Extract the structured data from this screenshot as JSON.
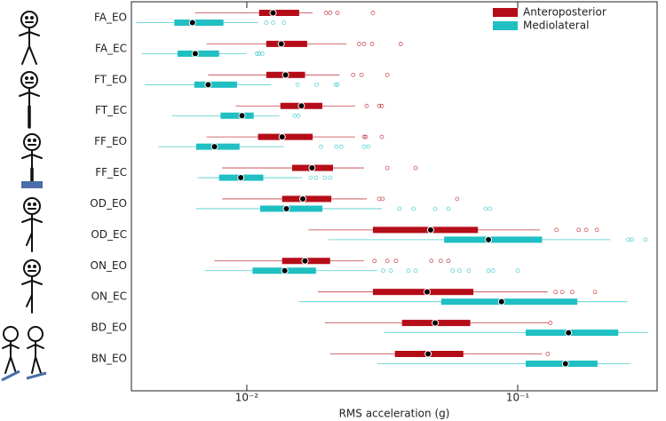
{
  "chart_data": {
    "type": "boxplot",
    "orientation": "horizontal",
    "xlabel": "RMS acceleration (g)",
    "xscale": "log",
    "xlim": [
      0.00375,
      0.327
    ],
    "xticks": [
      {
        "value": 0.01,
        "label": "10⁻²"
      },
      {
        "value": 0.1,
        "label": "10⁻¹"
      }
    ],
    "legend": "upper right",
    "categories": [
      "FA_EO",
      "FA_EC",
      "FT_EO",
      "FT_EC",
      "FF_EO",
      "FF_EC",
      "OD_EO",
      "OD_EC",
      "ON_EO",
      "ON_EC",
      "BD_EO",
      "BN_EO"
    ],
    "series": [
      {
        "name": "Anteroposterior",
        "color": "#b50d18",
        "values": [
          {
            "low": 0.00645,
            "q1": 0.0111,
            "median": 0.0125,
            "q3": 0.0156,
            "high": 0.0175,
            "outliers": [
              0.0196,
              0.0203,
              0.0216,
              0.0292
            ]
          },
          {
            "low": 0.0071,
            "q1": 0.0118,
            "median": 0.0134,
            "q3": 0.0167,
            "high": 0.0233,
            "outliers": [
              0.026,
              0.0271,
              0.029,
              0.037
            ]
          },
          {
            "low": 0.0072,
            "q1": 0.0118,
            "median": 0.0139,
            "q3": 0.0164,
            "high": 0.022,
            "outliers": [
              0.0247,
              0.0265,
              0.033
            ]
          },
          {
            "low": 0.0091,
            "q1": 0.0133,
            "median": 0.0159,
            "q3": 0.019,
            "high": 0.0251,
            "outliers": [
              0.0277,
              0.0308,
              0.0315
            ]
          },
          {
            "low": 0.0071,
            "q1": 0.011,
            "median": 0.0135,
            "q3": 0.0175,
            "high": 0.0251,
            "outliers": [
              0.0271,
              0.0275,
              0.0315
            ]
          },
          {
            "low": 0.0081,
            "q1": 0.0147,
            "median": 0.0174,
            "q3": 0.0208,
            "high": 0.0271,
            "outliers": [
              0.033,
              0.042
            ]
          },
          {
            "low": 0.0081,
            "q1": 0.0135,
            "median": 0.0161,
            "q3": 0.0205,
            "high": 0.0277,
            "outliers": [
              0.0308,
              0.0317,
              0.0598
            ]
          },
          {
            "low": 0.0169,
            "q1": 0.0292,
            "median": 0.0477,
            "q3": 0.0713,
            "high": 0.121,
            "outliers": [
              0.139,
              0.168,
              0.179,
              0.196
            ]
          },
          {
            "low": 0.0076,
            "q1": 0.0135,
            "median": 0.0164,
            "q3": 0.0203,
            "high": 0.0271,
            "outliers": [
              0.0296,
              0.033,
              0.0355,
              0.048,
              0.052,
              0.0555
            ]
          },
          {
            "low": 0.0183,
            "q1": 0.0292,
            "median": 0.0463,
            "q3": 0.0686,
            "high": 0.129,
            "outliers": [
              0.138,
              0.146,
              0.159,
              0.193
            ]
          },
          {
            "low": 0.0194,
            "q1": 0.0374,
            "median": 0.0496,
            "q3": 0.0668,
            "high": 0.13,
            "outliers": [
              0.132
            ]
          },
          {
            "low": 0.0203,
            "q1": 0.0352,
            "median": 0.0467,
            "q3": 0.063,
            "high": 0.123,
            "outliers": [
              0.129
            ]
          }
        ]
      },
      {
        "name": "Mediolateral",
        "color": "#1fbfc2",
        "values": [
          {
            "low": 0.0039,
            "q1": 0.0054,
            "median": 0.0063,
            "q3": 0.0082,
            "high": 0.011,
            "outliers": [
              0.0118,
              0.0125,
              0.0137
            ]
          },
          {
            "low": 0.0041,
            "q1": 0.00555,
            "median": 0.00645,
            "q3": 0.0079,
            "high": 0.01,
            "outliers": [
              0.0109,
              0.0111,
              0.0114
            ]
          },
          {
            "low": 0.0042,
            "q1": 0.0064,
            "median": 0.0072,
            "q3": 0.0092,
            "high": 0.0123,
            "outliers": [
              0.0154,
              0.0181,
              0.0213,
              0.0216
            ]
          },
          {
            "low": 0.0053,
            "q1": 0.008,
            "median": 0.0096,
            "q3": 0.0106,
            "high": 0.0132,
            "outliers": [
              0.015,
              0.0155
            ]
          },
          {
            "low": 0.0047,
            "q1": 0.0065,
            "median": 0.0076,
            "q3": 0.0094,
            "high": 0.0137,
            "outliers": [
              0.0188,
              0.0214,
              0.0223,
              0.0271,
              0.0281
            ]
          },
          {
            "low": 0.0066,
            "q1": 0.0079,
            "median": 0.0095,
            "q3": 0.0115,
            "high": 0.016,
            "outliers": [
              0.0172,
              0.018,
              0.0194,
              0.0203
            ]
          },
          {
            "low": 0.0065,
            "q1": 0.0112,
            "median": 0.014,
            "q3": 0.019,
            "high": 0.0315,
            "outliers": [
              0.0366,
              0.0412,
              0.0496,
              0.0555,
              0.0761,
              0.079
            ]
          },
          {
            "low": 0.02,
            "q1": 0.0535,
            "median": 0.078,
            "q3": 0.123,
            "high": 0.22,
            "outliers": [
              0.256,
              0.264,
              0.296
            ]
          },
          {
            "low": 0.007,
            "q1": 0.0105,
            "median": 0.0138,
            "q3": 0.018,
            "high": 0.0303,
            "outliers": [
              0.0319,
              0.034,
              0.0395,
              0.042,
              0.0575,
              0.061,
              0.066,
              0.078,
              0.081,
              0.1
            ]
          },
          {
            "low": 0.0156,
            "q1": 0.0522,
            "median": 0.0871,
            "q3": 0.166,
            "high": 0.254,
            "outliers": []
          },
          {
            "low": 0.0322,
            "q1": 0.107,
            "median": 0.154,
            "q3": 0.235,
            "high": 0.303,
            "outliers": []
          },
          {
            "low": 0.0303,
            "q1": 0.107,
            "median": 0.15,
            "q3": 0.197,
            "high": 0.26,
            "outliers": []
          }
        ]
      }
    ]
  }
}
